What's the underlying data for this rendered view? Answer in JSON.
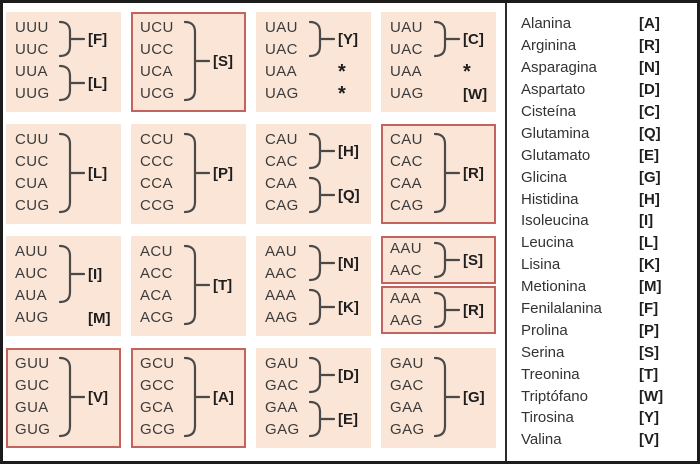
{
  "colors": {
    "cell_bg": "#fbe5d6",
    "red_border": "#c4625e",
    "frame_border": "#1c1c1c",
    "divider": "#2b2b2b",
    "codon_color": "#3c3c3c",
    "label_color": "#1e1e1e",
    "legend_color": "#333333"
  },
  "grid": {
    "cells": [
      {
        "red": false,
        "split": false,
        "groups": [
          {
            "codons": [
              "UUU",
              "UUC"
            ],
            "label": "[F]",
            "bracket": true
          },
          {
            "codons": [
              "UUA",
              "UUG"
            ],
            "label": "[L]",
            "bracket": true
          }
        ]
      },
      {
        "red": true,
        "split": false,
        "groups": [
          {
            "codons": [
              "UCU",
              "UCC",
              "UCA",
              "UCG"
            ],
            "label": "[S]",
            "bracket": true
          }
        ]
      },
      {
        "red": false,
        "split": false,
        "groups": [
          {
            "codons": [
              "UAU",
              "UAC"
            ],
            "label": "[Y]",
            "bracket": true
          },
          {
            "codons": [
              "UAA"
            ],
            "label": "*",
            "bracket": false
          },
          {
            "codons": [
              "UAG"
            ],
            "label": "*",
            "bracket": false
          }
        ]
      },
      {
        "red": false,
        "split": false,
        "groups": [
          {
            "codons": [
              "UAU",
              "UAC"
            ],
            "label": "[C]",
            "bracket": true
          },
          {
            "codons": [
              "UAA"
            ],
            "label": "*",
            "bracket": false
          },
          {
            "codons": [
              "UAG"
            ],
            "label": "[W]",
            "bracket": false
          }
        ]
      },
      {
        "red": false,
        "split": false,
        "groups": [
          {
            "codons": [
              "CUU",
              "CUC",
              "CUA",
              "CUG"
            ],
            "label": "[L]",
            "bracket": true
          }
        ]
      },
      {
        "red": false,
        "split": false,
        "groups": [
          {
            "codons": [
              "CCU",
              "CCC",
              "CCA",
              "CCG"
            ],
            "label": "[P]",
            "bracket": true
          }
        ]
      },
      {
        "red": false,
        "split": false,
        "groups": [
          {
            "codons": [
              "CAU",
              "CAC"
            ],
            "label": "[H]",
            "bracket": true
          },
          {
            "codons": [
              "CAA",
              "CAG"
            ],
            "label": "[Q]",
            "bracket": true
          }
        ]
      },
      {
        "red": true,
        "split": false,
        "groups": [
          {
            "codons": [
              "CAU",
              "CAC",
              "CAA",
              "CAG"
            ],
            "label": "[R]",
            "bracket": true
          }
        ]
      },
      {
        "red": false,
        "split": false,
        "groups": [
          {
            "codons": [
              "AUU",
              "AUC",
              "AUA"
            ],
            "label": "[I]",
            "bracket": true
          },
          {
            "codons": [
              "AUG"
            ],
            "label": "[M]",
            "bracket": false
          }
        ]
      },
      {
        "red": false,
        "split": false,
        "groups": [
          {
            "codons": [
              "ACU",
              "ACC",
              "ACA",
              "ACG"
            ],
            "label": "[T]",
            "bracket": true
          }
        ]
      },
      {
        "red": false,
        "split": false,
        "groups": [
          {
            "codons": [
              "AAU",
              "AAC"
            ],
            "label": "[N]",
            "bracket": true
          },
          {
            "codons": [
              "AAA",
              "AAG"
            ],
            "label": "[K]",
            "bracket": true
          }
        ]
      },
      {
        "red": true,
        "split": true,
        "groups": [
          {
            "codons": [
              "AAU",
              "AAC"
            ],
            "label": "[S]",
            "bracket": true
          },
          {
            "codons": [
              "AAA",
              "AAG"
            ],
            "label": "[R]",
            "bracket": true
          }
        ]
      },
      {
        "red": true,
        "split": false,
        "groups": [
          {
            "codons": [
              "GUU",
              "GUC",
              "GUA",
              "GUG"
            ],
            "label": "[V]",
            "bracket": true
          }
        ]
      },
      {
        "red": true,
        "split": false,
        "groups": [
          {
            "codons": [
              "GCU",
              "GCC",
              "GCA",
              "GCG"
            ],
            "label": "[A]",
            "bracket": true
          }
        ]
      },
      {
        "red": false,
        "split": false,
        "groups": [
          {
            "codons": [
              "GAU",
              "GAC"
            ],
            "label": "[D]",
            "bracket": true
          },
          {
            "codons": [
              "GAA",
              "GAG"
            ],
            "label": "[E]",
            "bracket": true
          }
        ]
      },
      {
        "red": false,
        "split": false,
        "groups": [
          {
            "codons": [
              "GAU",
              "GAC",
              "GAA",
              "GAG"
            ],
            "label": "[G]",
            "bracket": true
          }
        ]
      }
    ]
  },
  "legend": {
    "items": [
      {
        "name": "Alanina",
        "code": "[A]"
      },
      {
        "name": "Arginina",
        "code": "[R]"
      },
      {
        "name": "Asparagina",
        "code": "[N]"
      },
      {
        "name": "Aspartato",
        "code": "[D]"
      },
      {
        "name": "Cisteína",
        "code": "[C]"
      },
      {
        "name": "Glutamina",
        "code": "[Q]"
      },
      {
        "name": "Glutamato",
        "code": "[E]"
      },
      {
        "name": "Glicina",
        "code": "[G]"
      },
      {
        "name": "Histidina",
        "code": "[H]"
      },
      {
        "name": "Isoleucina",
        "code": "[I]"
      },
      {
        "name": "Leucina",
        "code": "[L]"
      },
      {
        "name": "Lisina",
        "code": "[K]"
      },
      {
        "name": "Metionina",
        "code": "[M]"
      },
      {
        "name": "Fenilalanina",
        "code": "[F]"
      },
      {
        "name": "Prolina",
        "code": "[P]"
      },
      {
        "name": "Serina",
        "code": "[S]"
      },
      {
        "name": "Treonina",
        "code": "[T]"
      },
      {
        "name": "Triptófano",
        "code": "[W]"
      },
      {
        "name": "Tirosina",
        "code": "[Y]"
      },
      {
        "name": "Valina",
        "code": "[V]"
      }
    ]
  }
}
